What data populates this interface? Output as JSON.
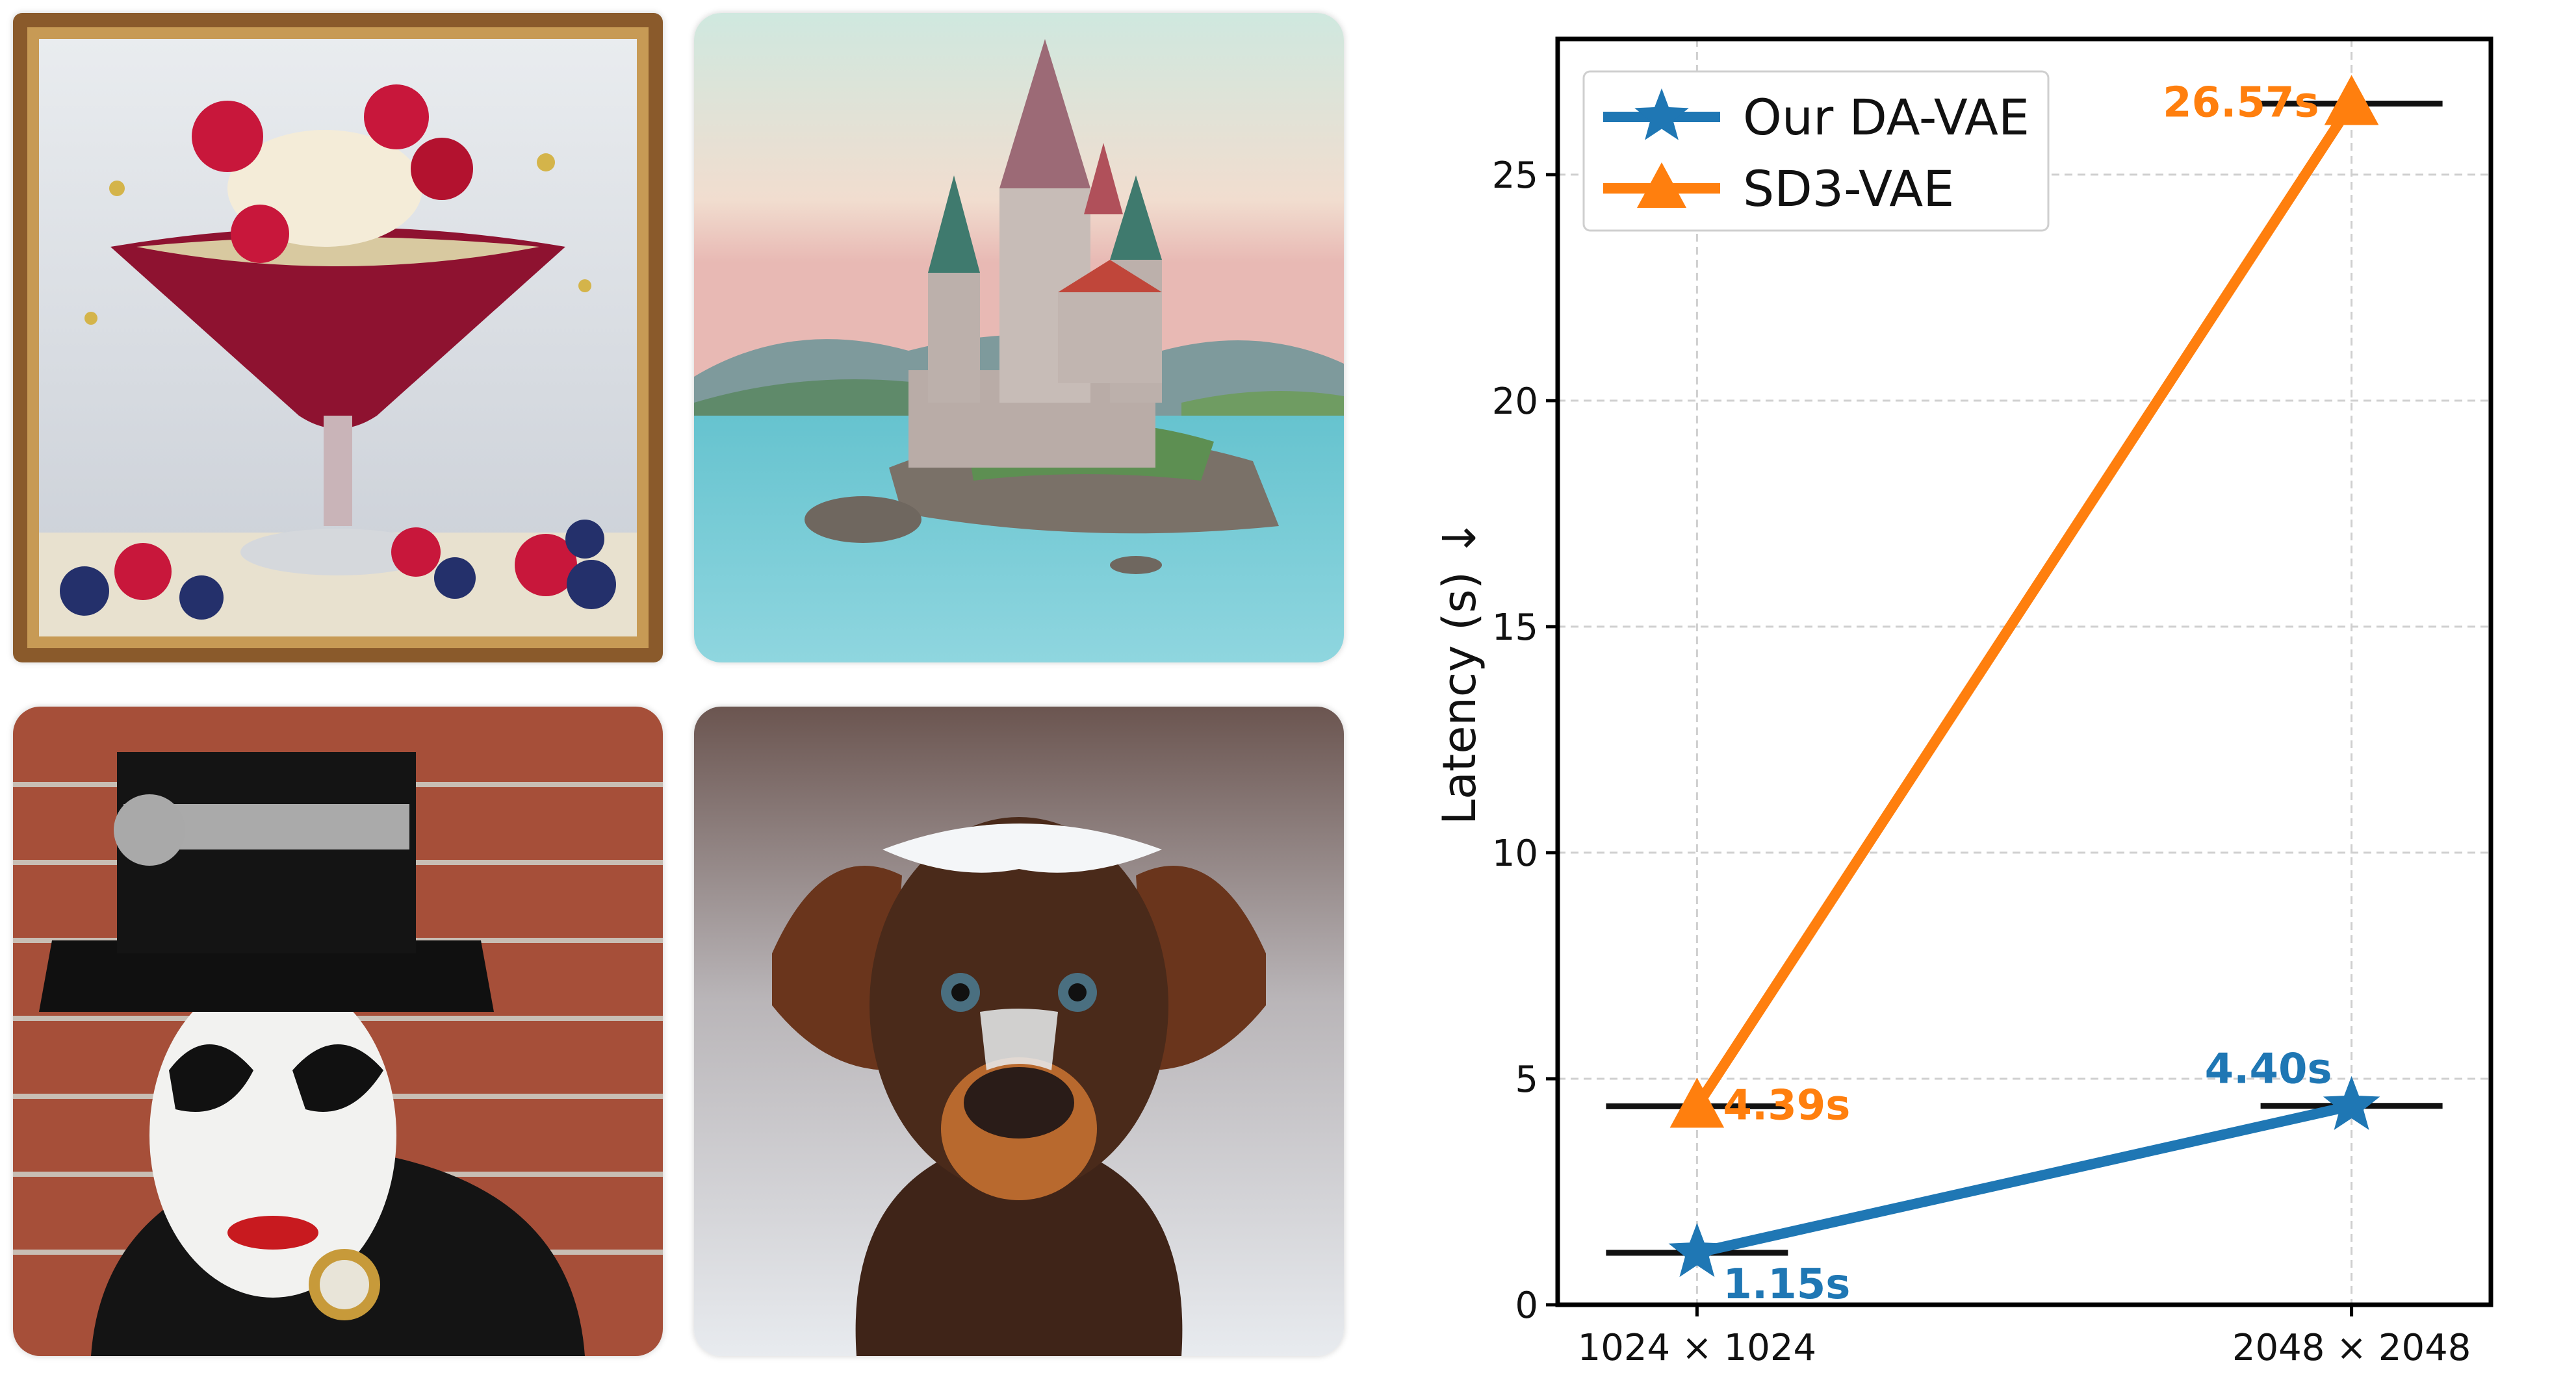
{
  "images": [
    {
      "subject": "dessert in a martini glass with raspberries, blueberries and whipped cream"
    },
    {
      "subject": "fairytale castle on a rocky island in a lake"
    },
    {
      "subject": "person with black-and-white face paint wearing an ornate top hat"
    },
    {
      "subject": "brown dog with snow on its head"
    }
  ],
  "chart_data": {
    "type": "line",
    "categories": [
      "1024 × 1024",
      "2048 × 2048"
    ],
    "ylabel": "Latency (s) ↓",
    "xlabel": "",
    "ylim": [
      0,
      28
    ],
    "yticks": [
      0,
      5,
      10,
      15,
      20,
      25
    ],
    "grid": true,
    "legend_position": "top-left",
    "series": [
      {
        "name": "Our DA-VAE",
        "values": [
          1.15,
          4.4
        ],
        "labels": [
          "1.15s",
          "4.40s"
        ],
        "color": "#1f77b4",
        "marker": "star"
      },
      {
        "name": "SD3-VAE",
        "values": [
          4.39,
          26.57
        ],
        "labels": [
          "4.39s",
          "26.57s"
        ],
        "color": "#ff7f0e",
        "marker": "triangle"
      }
    ]
  }
}
